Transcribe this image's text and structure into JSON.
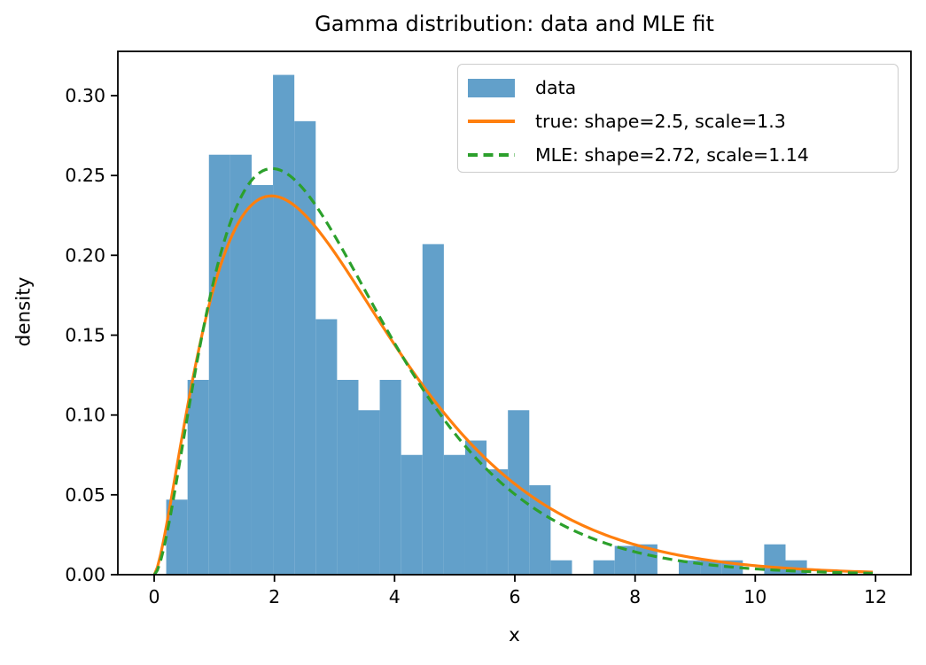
{
  "chart_data": {
    "type": "histogram",
    "title": "Gamma distribution: data and MLE fit",
    "xlabel": "x",
    "ylabel": "density",
    "xlim": [
      -0.6,
      12.59
    ],
    "ylim": [
      0,
      0.3277
    ],
    "xticks": [
      0,
      2,
      4,
      6,
      8,
      10,
      12
    ],
    "ytick_labels": [
      "0.00",
      "0.05",
      "0.10",
      "0.15",
      "0.20",
      "0.25",
      "0.30"
    ],
    "ytick_values": [
      0.0,
      0.05,
      0.1,
      0.15,
      0.2,
      0.25,
      0.3
    ],
    "grid": false,
    "hist": {
      "label": "data",
      "color": "#62a0ca",
      "bin_start": 0.2,
      "bin_width": 0.3553,
      "densities": [
        0.047,
        0.122,
        0.263,
        0.263,
        0.244,
        0.313,
        0.284,
        0.16,
        0.122,
        0.103,
        0.122,
        0.075,
        0.207,
        0.075,
        0.084,
        0.066,
        0.103,
        0.056,
        0.009,
        0,
        0.009,
        0.018,
        0.019,
        0,
        0.009,
        0.009,
        0.009,
        0,
        0.019,
        0.009
      ]
    },
    "curves": [
      {
        "label": "true: shape=2.5, scale=1.3",
        "color": "#ff7f0e",
        "style": "solid",
        "shape": 2.5,
        "scale": 1.3,
        "x_range": [
          0,
          12
        ]
      },
      {
        "label": "MLE: shape=2.72, scale=1.14",
        "color": "#2ca02c",
        "style": "dashed",
        "shape": 2.72,
        "scale": 1.14,
        "x_range": [
          0,
          12
        ]
      }
    ],
    "legend": {
      "position": "upper right"
    },
    "axis_color": "#000000",
    "text_color": "#000000"
  }
}
